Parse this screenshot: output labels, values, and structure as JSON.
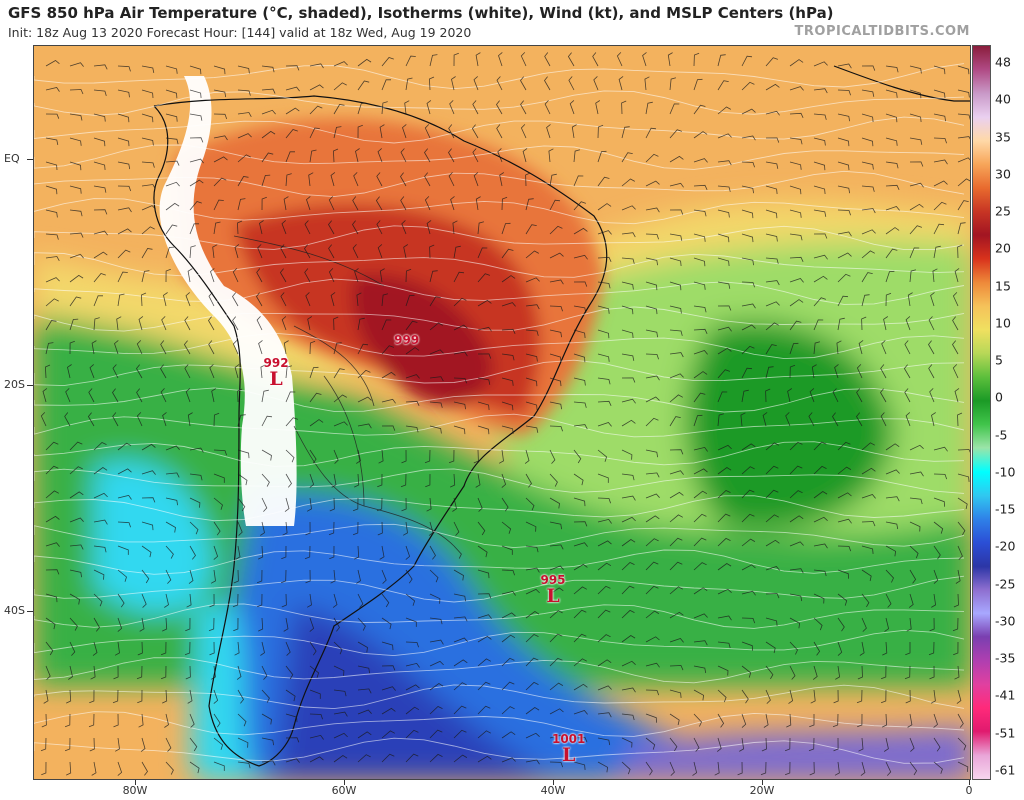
{
  "header": {
    "title": "GFS 850 hPa Air Temperature (°C, shaded), Isotherms (white), Wind (kt), and MSLP Centers (hPa)",
    "subtitle": "Init: 18z Aug 13 2020   Forecast Hour: [144]   valid at 18z Wed, Aug 19 2020",
    "brand": "TROPICALTIDBITS.COM"
  },
  "axes": {
    "lat_labels": [
      {
        "lat": 0,
        "label": "EQ"
      },
      {
        "lat": -20,
        "label": "20S"
      },
      {
        "lat": -40,
        "label": "40S"
      }
    ],
    "lon_labels": [
      {
        "lon": -80,
        "label": "80W"
      },
      {
        "lon": -60,
        "label": "60W"
      },
      {
        "lon": -40,
        "label": "40W"
      },
      {
        "lon": -20,
        "label": "20W"
      },
      {
        "lon": 0,
        "label": "0"
      }
    ]
  },
  "colorbar": {
    "labels": [
      "48",
      "40",
      "35",
      "30",
      "25",
      "20",
      "15",
      "10",
      "5",
      "0",
      "-5",
      "-10",
      "-15",
      "-20",
      "-25",
      "-30",
      "-35",
      "-41",
      "-51",
      "-61"
    ],
    "colors": [
      "#8a1e3c",
      "#b04a84",
      "#c99ac8",
      "#ead0f0",
      "#ffd9a8",
      "#f7a65a",
      "#e86a2e",
      "#c73524",
      "#a21522",
      "#d8321c",
      "#ee8a3a",
      "#f5c25a",
      "#f0e060",
      "#b8d858",
      "#5cbf3c",
      "#1b9a26",
      "#40c44a",
      "#9be4a8",
      "#00ffff",
      "#30c8f0",
      "#2f82e8",
      "#2b4fd6",
      "#2c36a6",
      "#8e6fd0",
      "#a8a8ff",
      "#7a3fb0",
      "#b03fb0",
      "#e040a0",
      "#ff2a7a",
      "#e01a6e",
      "#e9a6d8",
      "#f6d5ee"
    ]
  },
  "pressure_centers": [
    {
      "value": "992",
      "symbol": "L"
    },
    {
      "value": "999",
      "symbol": ""
    },
    {
      "value": "995",
      "symbol": "L"
    },
    {
      "value": "1001",
      "symbol": "L"
    }
  ]
}
